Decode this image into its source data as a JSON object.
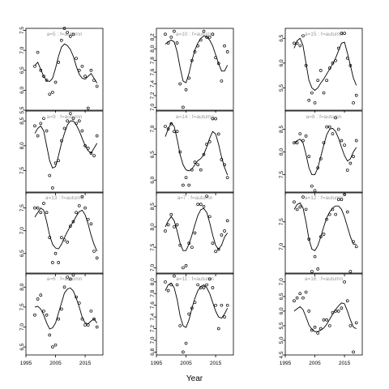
{
  "figure": {
    "xlabel": "Year"
  },
  "chart_data": [
    {
      "type": "scatter",
      "title": "a=5  :  f=autumn",
      "xlim": [
        1995,
        2021
      ],
      "ylim": [
        5.5,
        7.55
      ],
      "yticks": [
        5.5,
        6.0,
        6.5,
        7.0,
        7.5
      ],
      "x": [
        1998,
        1999,
        2000,
        2001,
        2002,
        2003,
        2004,
        2005,
        2006,
        2007,
        2008,
        2009,
        2010,
        2011,
        2012,
        2013,
        2014,
        2015,
        2016,
        2017,
        2018,
        2019
      ],
      "points": [
        6.6,
        6.95,
        6.5,
        6.35,
        6.25,
        5.9,
        5.95,
        6.2,
        6.7,
        7.25,
        7.55,
        7.45,
        7.35,
        7.4,
        6.8,
        6.5,
        6.6,
        6.35,
        5.55,
        6.5,
        6.25,
        6.1
      ],
      "smooth": [
        6.62,
        6.7,
        6.52,
        6.35,
        6.24,
        6.22,
        6.3,
        6.55,
        6.85,
        7.08,
        7.16,
        7.12,
        7.02,
        6.85,
        6.6,
        6.4,
        6.3,
        6.28,
        6.35,
        6.42,
        6.3,
        6.18
      ]
    },
    {
      "type": "scatter",
      "title": "a=9  :  f=autumn",
      "xlim": [
        1995,
        2021
      ],
      "ylim": [
        7.05,
        8.7
      ],
      "yticks": [
        7.5,
        8.0,
        8.5
      ],
      "x": [
        1998,
        1999,
        2000,
        2001,
        2002,
        2003,
        2004,
        2005,
        2006,
        2007,
        2008,
        2009,
        2010,
        2011,
        2012,
        2013,
        2014,
        2015,
        2016,
        2017,
        2018,
        2019
      ],
      "points": [
        8.4,
        8.2,
        8.45,
        8.55,
        8.3,
        7.4,
        7.15,
        7.65,
        7.7,
        8.1,
        8.35,
        8.5,
        8.65,
        8.55,
        8.45,
        8.5,
        8.3,
        8.0,
        7.95,
        7.85,
        7.8,
        8.2
      ],
      "smooth": [
        8.25,
        8.35,
        8.4,
        8.3,
        8.0,
        7.7,
        7.55,
        7.58,
        7.8,
        8.05,
        8.25,
        8.42,
        8.5,
        8.5,
        8.42,
        8.3,
        8.15,
        8.0,
        7.9,
        7.85,
        7.95,
        8.05
      ]
    },
    {
      "type": "scatter",
      "title": "a=13  :  f=autumn",
      "xlim": [
        1995,
        2021
      ],
      "ylim": [
        6.05,
        7.85
      ],
      "yticks": [
        6.5,
        7.0,
        7.5
      ],
      "x": [
        1998,
        1999,
        2000,
        2001,
        2002,
        2003,
        2004,
        2005,
        2006,
        2007,
        2008,
        2009,
        2010,
        2011,
        2012,
        2013,
        2014,
        2015,
        2016,
        2017,
        2018,
        2019
      ],
      "points": [
        7.5,
        7.5,
        7.4,
        7.6,
        7.4,
        6.85,
        6.3,
        6.5,
        6.3,
        6.85,
        6.8,
        6.75,
        7.1,
        7.2,
        7.4,
        7.55,
        7.75,
        7.5,
        7.25,
        7.15,
        6.55,
        6.4
      ],
      "smooth": [
        7.3,
        7.4,
        7.5,
        7.45,
        7.2,
        6.9,
        6.7,
        6.62,
        6.6,
        6.7,
        6.85,
        6.98,
        7.1,
        7.2,
        7.32,
        7.42,
        7.45,
        7.35,
        7.15,
        6.9,
        6.7,
        6.55
      ]
    },
    {
      "type": "scatter",
      "title": "a=6  :  f=autumn",
      "xlim": [
        1995,
        2021
      ],
      "ylim": [
        6.3,
        8.35
      ],
      "yticks": [
        6.5,
        7.0,
        7.5,
        8.0
      ],
      "x": [
        1998,
        1999,
        2000,
        2001,
        2002,
        2003,
        2004,
        2005,
        2006,
        2007,
        2008,
        2009,
        2010,
        2011,
        2012,
        2013,
        2014,
        2015,
        2016,
        2017,
        2018,
        2019
      ],
      "points": [
        7.3,
        7.7,
        7.8,
        7.4,
        7.3,
        6.8,
        6.5,
        6.55,
        7.2,
        7.45,
        8.0,
        8.25,
        8.2,
        8.3,
        7.75,
        7.6,
        7.2,
        7.05,
        7.05,
        7.4,
        7.2,
        7.0
      ],
      "smooth": [
        7.5,
        7.52,
        7.45,
        7.3,
        7.1,
        6.95,
        6.98,
        7.1,
        7.35,
        7.6,
        7.85,
        7.95,
        7.98,
        7.9,
        7.72,
        7.5,
        7.25,
        7.1,
        7.08,
        7.15,
        7.2,
        7.1
      ]
    },
    {
      "type": "scatter",
      "title": "a=10  :  f=autumn",
      "xlim": [
        1995,
        2021
      ],
      "ylim": [
        6.95,
        8.35
      ],
      "yticks": [
        7.0,
        7.2,
        7.4,
        7.6,
        7.8,
        8.0,
        8.2
      ],
      "x": [
        1998,
        1999,
        2000,
        2001,
        2002,
        2003,
        2004,
        2005,
        2006,
        2007,
        2008,
        2009,
        2010,
        2011,
        2012,
        2013,
        2014,
        2015,
        2016,
        2017,
        2018,
        2019
      ],
      "points": [
        8.25,
        8.1,
        8.2,
        8.3,
        8.1,
        7.4,
        7.0,
        7.3,
        7.5,
        7.8,
        7.95,
        8.05,
        8.15,
        8.3,
        8.2,
        8.2,
        8.25,
        7.85,
        7.75,
        7.45,
        8.05,
        7.95
      ],
      "smooth": [
        8.08,
        8.12,
        8.15,
        8.12,
        7.95,
        7.68,
        7.45,
        7.42,
        7.58,
        7.8,
        7.98,
        8.1,
        8.18,
        8.22,
        8.2,
        8.15,
        8.05,
        7.9,
        7.75,
        7.62,
        7.62,
        7.72
      ]
    },
    {
      "type": "scatter",
      "title": "a=14  :  f=autumn",
      "xlim": [
        1995,
        2021
      ],
      "ylim": [
        5.75,
        7.35
      ],
      "yticks": [
        6.0,
        6.5,
        7.0
      ],
      "x": [
        1998,
        1999,
        2000,
        2001,
        2002,
        2003,
        2004,
        2005,
        2006,
        2007,
        2008,
        2009,
        2010,
        2011,
        2012,
        2013,
        2014,
        2015,
        2016,
        2017,
        2018,
        2019
      ],
      "points": [
        7.05,
        7.0,
        7.1,
        6.95,
        6.95,
        6.55,
        5.9,
        6.05,
        5.9,
        6.2,
        6.35,
        6.3,
        6.2,
        6.5,
        6.7,
        6.75,
        7.2,
        7.2,
        6.9,
        6.4,
        6.3,
        6.05
      ],
      "smooth": [
        6.85,
        7.0,
        7.12,
        7.05,
        6.8,
        6.5,
        6.3,
        6.2,
        6.18,
        6.22,
        6.3,
        6.38,
        6.42,
        6.5,
        6.65,
        6.82,
        6.95,
        6.9,
        6.7,
        6.45,
        6.25,
        6.1
      ]
    },
    {
      "type": "scatter",
      "title": "a=7  :  f=autumn",
      "xlim": [
        1995,
        2021
      ],
      "ylim": [
        6.85,
        8.85
      ],
      "yticks": [
        7.0,
        7.5,
        8.0,
        8.5
      ],
      "x": [
        1998,
        1999,
        2000,
        2001,
        2002,
        2003,
        2004,
        2005,
        2006,
        2007,
        2008,
        2009,
        2010,
        2011,
        2012,
        2013,
        2014,
        2015,
        2016,
        2017,
        2018,
        2019
      ],
      "points": [
        7.9,
        8.05,
        8.3,
        8.0,
        8.05,
        7.55,
        7.0,
        7.05,
        7.6,
        7.5,
        7.85,
        8.55,
        8.55,
        8.5,
        8.75,
        8.25,
        7.6,
        7.4,
        7.45,
        7.8,
        7.9,
        8.15
      ],
      "smooth": [
        8.0,
        8.15,
        8.25,
        8.15,
        7.9,
        7.6,
        7.42,
        7.42,
        7.58,
        7.8,
        8.05,
        8.28,
        8.42,
        8.45,
        8.35,
        8.1,
        7.8,
        7.55,
        7.45,
        7.55,
        7.75,
        7.85
      ]
    },
    {
      "type": "scatter",
      "title": "a=11  :  f=autumn",
      "xlim": [
        1995,
        2021
      ],
      "ylim": [
        6.75,
        8.15
      ],
      "yticks": [
        6.8,
        7.0,
        7.2,
        7.4,
        7.6,
        7.8,
        8.0
      ],
      "x": [
        1998,
        1999,
        2000,
        2001,
        2002,
        2003,
        2004,
        2005,
        2006,
        2007,
        2008,
        2009,
        2010,
        2011,
        2012,
        2013,
        2014,
        2015,
        2016,
        2017,
        2018,
        2019
      ],
      "points": [
        8.0,
        7.85,
        7.95,
        8.1,
        7.95,
        7.25,
        6.8,
        6.95,
        7.45,
        7.55,
        7.65,
        7.95,
        7.9,
        7.9,
        7.95,
        8.05,
        7.9,
        7.6,
        7.2,
        7.6,
        7.4,
        7.6
      ],
      "smooth": [
        7.85,
        7.95,
        7.98,
        7.9,
        7.7,
        7.42,
        7.25,
        7.22,
        7.35,
        7.55,
        7.72,
        7.85,
        7.92,
        7.95,
        7.9,
        7.8,
        7.65,
        7.5,
        7.4,
        7.38,
        7.45,
        7.55
      ]
    },
    {
      "type": "scatter",
      "title": "a=15  :  f=autumn",
      "xlim": [
        1995,
        2021
      ],
      "ylim": [
        5.05,
        6.7
      ],
      "yticks": [
        5.5,
        6.0,
        6.5
      ],
      "x": [
        1998,
        1999,
        2000,
        2001,
        2002,
        2003,
        2004,
        2005,
        2006,
        2007,
        2008,
        2009,
        2010,
        2011,
        2012,
        2013,
        2014,
        2015,
        2016,
        2017,
        2018,
        2019
      ],
      "points": [
        6.4,
        6.4,
        6.35,
        6.55,
        5.95,
        5.25,
        5.4,
        5.2,
        5.65,
        5.85,
        5.4,
        5.65,
        5.9,
        6.0,
        6.05,
        6.3,
        6.6,
        6.6,
        6.1,
        5.95,
        5.2,
        5.35
      ],
      "smooth": [
        6.3,
        6.45,
        6.5,
        6.35,
        6.0,
        5.65,
        5.5,
        5.45,
        5.5,
        5.6,
        5.68,
        5.78,
        5.88,
        5.98,
        6.1,
        6.25,
        6.4,
        6.42,
        6.2,
        5.95,
        5.7,
        5.55
      ]
    },
    {
      "type": "scatter",
      "title": "a=8  :  f=autumn",
      "xlim": [
        1995,
        2021
      ],
      "ylim": [
        7.1,
        8.9
      ],
      "yticks": [
        7.5,
        8.0,
        8.5
      ],
      "x": [
        1998,
        1999,
        2000,
        2001,
        2002,
        2003,
        2004,
        2005,
        2006,
        2007,
        2008,
        2009,
        2010,
        2011,
        2012,
        2013,
        2014,
        2015,
        2016,
        2017,
        2018,
        2019
      ],
      "points": [
        8.2,
        8.2,
        8.4,
        8.25,
        8.35,
        7.9,
        7.25,
        7.15,
        7.65,
        7.85,
        8.2,
        8.55,
        8.55,
        8.4,
        8.75,
        8.5,
        8.25,
        8.15,
        7.6,
        7.75,
        7.9,
        8.25
      ],
      "smooth": [
        8.2,
        8.25,
        8.28,
        8.2,
        7.95,
        7.65,
        7.5,
        7.5,
        7.65,
        7.9,
        8.15,
        8.38,
        8.5,
        8.52,
        8.45,
        8.3,
        8.1,
        7.92,
        7.8,
        7.85,
        8.0,
        8.1
      ]
    },
    {
      "type": "scatter",
      "title": "a=12  :  f=autumn",
      "xlim": [
        1995,
        2021
      ],
      "ylim": [
        6.45,
        8.1
      ],
      "yticks": [
        7.0,
        7.5
      ],
      "x": [
        1998,
        1999,
        2000,
        2001,
        2002,
        2003,
        2004,
        2005,
        2006,
        2007,
        2008,
        2009,
        2010,
        2011,
        2012,
        2013,
        2014,
        2015,
        2016,
        2017,
        2018,
        2019
      ],
      "points": [
        7.9,
        7.75,
        7.8,
        8.0,
        7.75,
        7.15,
        6.5,
        6.8,
        6.55,
        7.2,
        7.25,
        7.55,
        7.65,
        7.75,
        7.65,
        7.95,
        7.95,
        8.05,
        7.7,
        6.5,
        7.1,
        7.0
      ],
      "smooth": [
        7.75,
        7.85,
        7.88,
        7.78,
        7.5,
        7.15,
        6.95,
        6.92,
        7.02,
        7.2,
        7.4,
        7.58,
        7.7,
        7.78,
        7.82,
        7.82,
        7.75,
        7.6,
        7.4,
        7.2,
        7.05,
        7.05
      ]
    },
    {
      "type": "scatter",
      "title": "a=16  :  f=autumn",
      "xlim": [
        1995,
        2021
      ],
      "ylim": [
        4.5,
        7.3
      ],
      "yticks": [
        4.5,
        5.0,
        5.5,
        6.0,
        6.5,
        7.0
      ],
      "x": [
        1998,
        1999,
        2000,
        2001,
        2002,
        2003,
        2004,
        2005,
        2006,
        2007,
        2008,
        2009,
        2010,
        2011,
        2012,
        2013,
        2014,
        2015,
        2016,
        2017,
        2018,
        2019
      ],
      "points": [
        6.35,
        6.45,
        6.6,
        6.45,
        6.65,
        6.0,
        5.35,
        5.45,
        5.25,
        5.4,
        5.7,
        5.7,
        5.5,
        5.95,
        6.0,
        6.0,
        6.1,
        7.0,
        6.35,
        5.5,
        4.6,
        5.6
      ],
      "smooth": [
        6.0,
        6.08,
        6.15,
        6.05,
        5.8,
        5.52,
        5.38,
        5.3,
        5.3,
        5.35,
        5.42,
        5.55,
        5.72,
        5.9,
        6.05,
        6.18,
        6.28,
        6.25,
        6.0,
        5.7,
        5.45,
        5.4
      ]
    }
  ]
}
